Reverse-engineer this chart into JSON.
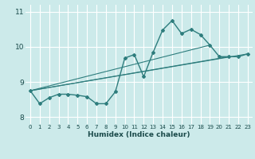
{
  "xlabel": "Humidex (Indice chaleur)",
  "ylabel": "",
  "background_color": "#cceaea",
  "grid_color": "#ffffff",
  "line_color": "#2e7d7d",
  "xlim": [
    -0.5,
    23.5
  ],
  "ylim": [
    7.8,
    11.2
  ],
  "xticks": [
    0,
    1,
    2,
    3,
    4,
    5,
    6,
    7,
    8,
    9,
    10,
    11,
    12,
    13,
    14,
    15,
    16,
    17,
    18,
    19,
    20,
    21,
    22,
    23
  ],
  "yticks": [
    8,
    9,
    10,
    11
  ],
  "series_main": {
    "x": [
      0,
      1,
      2,
      3,
      4,
      5,
      6,
      7,
      8,
      9,
      10,
      11,
      12,
      13,
      14,
      15,
      16,
      17,
      18,
      19,
      20,
      21,
      22,
      23
    ],
    "y": [
      8.75,
      8.38,
      8.55,
      8.65,
      8.65,
      8.62,
      8.58,
      8.38,
      8.38,
      8.72,
      9.68,
      9.78,
      9.15,
      9.85,
      10.48,
      10.75,
      10.38,
      10.5,
      10.35,
      10.05,
      9.72,
      9.72,
      9.72,
      9.8
    ]
  },
  "series_fan": [
    {
      "x": [
        0,
        23
      ],
      "y": [
        8.75,
        9.8
      ]
    },
    {
      "x": [
        0,
        23
      ],
      "y": [
        8.75,
        9.8
      ]
    },
    {
      "x": [
        0,
        19
      ],
      "y": [
        8.75,
        10.05
      ]
    },
    {
      "x": [
        0,
        19
      ],
      "y": [
        8.75,
        10.05
      ]
    }
  ],
  "fan_lines": [
    {
      "x0": 0,
      "y0": 8.75,
      "x1": 23,
      "y1": 9.8
    },
    {
      "x0": 0,
      "y0": 8.75,
      "x1": 21,
      "y1": 9.72
    },
    {
      "x0": 0,
      "y0": 8.75,
      "x1": 19,
      "y1": 10.05
    }
  ]
}
